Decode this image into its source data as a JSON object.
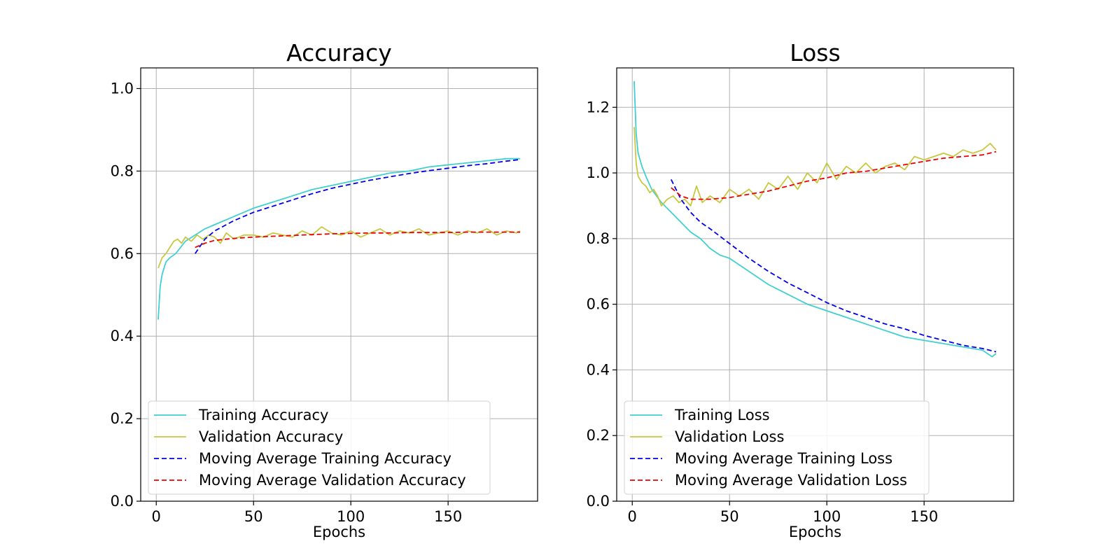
{
  "chart_data": [
    {
      "type": "line",
      "title": "Accuracy",
      "xlabel": "Epochs",
      "ylabel": "",
      "xlim": [
        -8,
        196
      ],
      "ylim": [
        0.0,
        1.05
      ],
      "xticks": [
        0,
        50,
        100,
        150
      ],
      "yticks": [
        0.0,
        0.2,
        0.4,
        0.6,
        0.8,
        1.0
      ],
      "xtick_labels": [
        "0",
        "50",
        "100",
        "150"
      ],
      "ytick_labels": [
        "0.0",
        "0.2",
        "0.4",
        "0.6",
        "0.8",
        "1.0"
      ],
      "grid": true,
      "legend_position": "lower-left",
      "series": [
        {
          "name": "Training Accuracy",
          "color": "#40d0d0",
          "style": "solid",
          "x": [
            1,
            2,
            3,
            5,
            7,
            10,
            15,
            20,
            25,
            30,
            40,
            50,
            60,
            70,
            80,
            90,
            100,
            110,
            120,
            130,
            140,
            150,
            160,
            170,
            180,
            187
          ],
          "y": [
            0.44,
            0.52,
            0.55,
            0.58,
            0.59,
            0.6,
            0.63,
            0.645,
            0.66,
            0.67,
            0.69,
            0.71,
            0.725,
            0.74,
            0.755,
            0.765,
            0.775,
            0.785,
            0.795,
            0.8,
            0.81,
            0.815,
            0.82,
            0.825,
            0.83,
            0.83
          ]
        },
        {
          "name": "Validation Accuracy",
          "color": "#c8c840",
          "style": "solid",
          "x": [
            1,
            3,
            5,
            7,
            9,
            11,
            13,
            15,
            18,
            21,
            24,
            27,
            30,
            33,
            36,
            40,
            45,
            50,
            55,
            60,
            65,
            70,
            75,
            80,
            85,
            90,
            95,
            100,
            105,
            110,
            115,
            120,
            125,
            130,
            135,
            140,
            145,
            150,
            155,
            160,
            165,
            170,
            175,
            180,
            185,
            187
          ],
          "y": [
            0.565,
            0.59,
            0.6,
            0.615,
            0.63,
            0.635,
            0.625,
            0.64,
            0.63,
            0.645,
            0.635,
            0.645,
            0.64,
            0.625,
            0.65,
            0.635,
            0.645,
            0.645,
            0.64,
            0.65,
            0.645,
            0.64,
            0.655,
            0.645,
            0.665,
            0.65,
            0.645,
            0.655,
            0.64,
            0.65,
            0.66,
            0.645,
            0.655,
            0.65,
            0.66,
            0.645,
            0.65,
            0.655,
            0.645,
            0.655,
            0.65,
            0.66,
            0.645,
            0.655,
            0.65,
            0.655
          ]
        },
        {
          "name": "Moving Average Training Accuracy",
          "color": "#0000ee",
          "style": "dashed",
          "x": [
            20,
            25,
            30,
            40,
            50,
            60,
            70,
            80,
            90,
            100,
            110,
            120,
            130,
            140,
            150,
            160,
            170,
            180,
            187
          ],
          "y": [
            0.6,
            0.635,
            0.655,
            0.68,
            0.7,
            0.715,
            0.73,
            0.745,
            0.758,
            0.768,
            0.778,
            0.786,
            0.794,
            0.801,
            0.807,
            0.813,
            0.818,
            0.824,
            0.828
          ]
        },
        {
          "name": "Moving Average Validation Accuracy",
          "color": "#ee0000",
          "style": "dashed",
          "x": [
            20,
            25,
            30,
            40,
            50,
            60,
            70,
            80,
            90,
            100,
            110,
            120,
            130,
            140,
            150,
            160,
            170,
            180,
            187
          ],
          "y": [
            0.615,
            0.625,
            0.632,
            0.637,
            0.64,
            0.642,
            0.644,
            0.646,
            0.648,
            0.649,
            0.65,
            0.65,
            0.651,
            0.651,
            0.651,
            0.652,
            0.652,
            0.652,
            0.652
          ]
        }
      ]
    },
    {
      "type": "line",
      "title": "Loss",
      "xlabel": "Epochs",
      "ylabel": "",
      "xlim": [
        -8,
        196
      ],
      "ylim": [
        0.0,
        1.32
      ],
      "xticks": [
        0,
        50,
        100,
        150
      ],
      "yticks": [
        0.0,
        0.2,
        0.4,
        0.6,
        0.8,
        1.0,
        1.2
      ],
      "xtick_labels": [
        "0",
        "50",
        "100",
        "150"
      ],
      "ytick_labels": [
        "0.0",
        "0.2",
        "0.4",
        "0.6",
        "0.8",
        "1.0",
        "1.2"
      ],
      "grid": true,
      "legend_position": "lower-left",
      "series": [
        {
          "name": "Training Loss",
          "color": "#40d0d0",
          "style": "solid",
          "x": [
            1,
            2,
            3,
            5,
            7,
            10,
            15,
            20,
            25,
            30,
            35,
            40,
            45,
            50,
            55,
            60,
            70,
            80,
            90,
            100,
            110,
            120,
            130,
            140,
            150,
            160,
            170,
            180,
            185,
            187
          ],
          "y": [
            1.28,
            1.12,
            1.06,
            1.02,
            0.99,
            0.95,
            0.91,
            0.88,
            0.85,
            0.82,
            0.8,
            0.77,
            0.75,
            0.74,
            0.72,
            0.7,
            0.66,
            0.63,
            0.6,
            0.58,
            0.56,
            0.54,
            0.52,
            0.5,
            0.49,
            0.48,
            0.47,
            0.46,
            0.44,
            0.45
          ]
        },
        {
          "name": "Validation Loss",
          "color": "#c8c840",
          "style": "solid",
          "x": [
            1,
            2,
            3,
            5,
            7,
            9,
            11,
            13,
            15,
            18,
            21,
            24,
            27,
            30,
            33,
            36,
            40,
            45,
            50,
            55,
            60,
            65,
            70,
            75,
            80,
            85,
            90,
            95,
            100,
            105,
            110,
            115,
            120,
            125,
            130,
            135,
            140,
            145,
            150,
            155,
            160,
            165,
            170,
            175,
            180,
            184,
            187
          ],
          "y": [
            1.14,
            1.03,
            0.99,
            0.97,
            0.96,
            0.94,
            0.95,
            0.93,
            0.9,
            0.92,
            0.93,
            0.91,
            0.92,
            0.9,
            0.96,
            0.91,
            0.93,
            0.91,
            0.95,
            0.93,
            0.95,
            0.92,
            0.97,
            0.95,
            0.99,
            0.95,
            1.0,
            0.97,
            1.03,
            0.98,
            1.02,
            1.0,
            1.03,
            1.0,
            1.02,
            1.03,
            1.01,
            1.05,
            1.04,
            1.05,
            1.06,
            1.05,
            1.07,
            1.06,
            1.07,
            1.09,
            1.07
          ]
        },
        {
          "name": "Moving Average Training Loss",
          "color": "#0000ee",
          "style": "dashed",
          "x": [
            20,
            25,
            30,
            35,
            40,
            50,
            60,
            70,
            80,
            90,
            100,
            110,
            120,
            130,
            140,
            150,
            160,
            170,
            180,
            187
          ],
          "y": [
            0.98,
            0.92,
            0.88,
            0.85,
            0.83,
            0.785,
            0.74,
            0.7,
            0.665,
            0.635,
            0.605,
            0.58,
            0.56,
            0.54,
            0.525,
            0.505,
            0.49,
            0.475,
            0.465,
            0.455
          ]
        },
        {
          "name": "Moving Average Validation Loss",
          "color": "#ee0000",
          "style": "dashed",
          "x": [
            20,
            25,
            30,
            40,
            50,
            60,
            70,
            80,
            90,
            100,
            110,
            120,
            130,
            140,
            150,
            160,
            170,
            180,
            187
          ],
          "y": [
            0.955,
            0.93,
            0.92,
            0.92,
            0.925,
            0.935,
            0.945,
            0.96,
            0.975,
            0.985,
            1.0,
            1.005,
            1.015,
            1.025,
            1.035,
            1.045,
            1.05,
            1.055,
            1.065
          ]
        }
      ]
    }
  ]
}
